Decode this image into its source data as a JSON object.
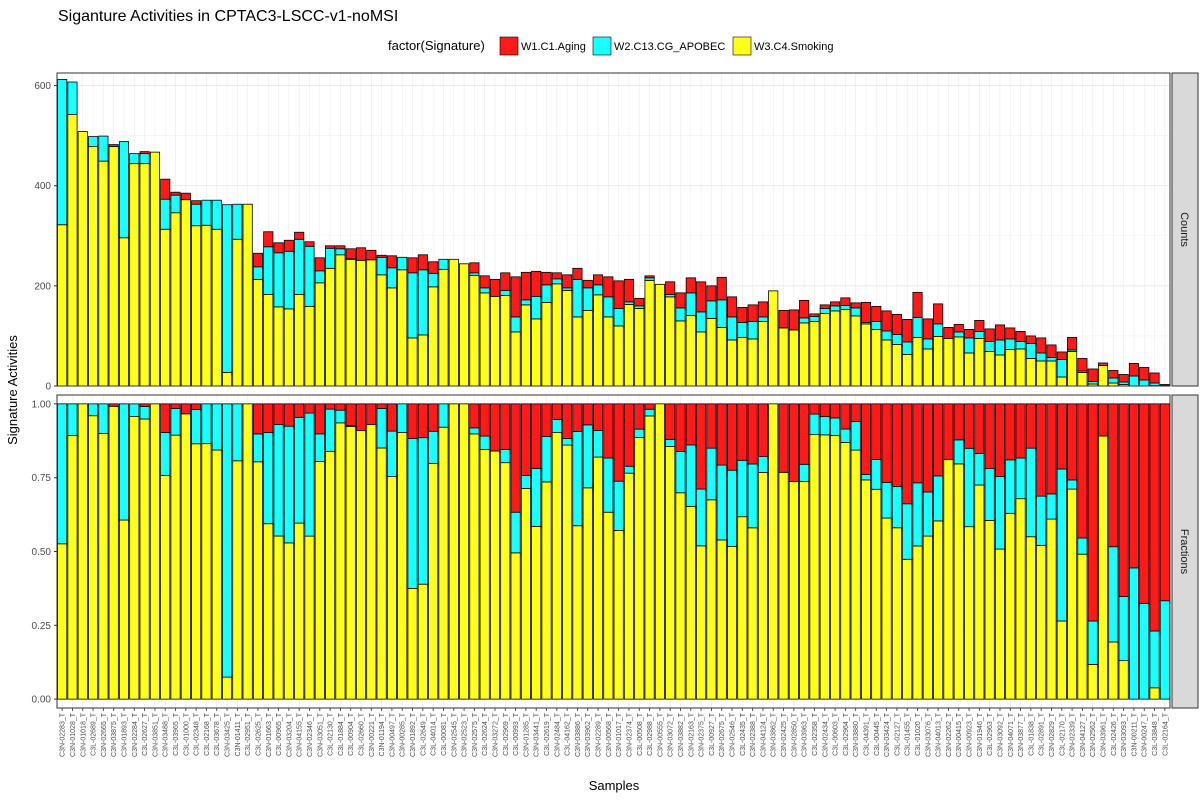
{
  "chart_data": {
    "type": "bar",
    "title": "Siganture Activities in CPTAC3-LSCC-v1-noMSI",
    "xlabel": "Samples",
    "ylabel": "Signature Activities",
    "legend_title": "factor(Signature)",
    "legend_position": "top",
    "signatures": [
      "W1.C1.Aging",
      "W2.C13.CG_APOBEC",
      "W3.C4.Smoking"
    ],
    "colors": {
      "W1.C1.Aging": "#ff1a1a",
      "W2.C13.CG_APOBEC": "#1affff",
      "W3.C4.Smoking": "#ffff1a"
    },
    "panels": [
      {
        "strip": "Counts",
        "ylim": [
          0,
          625
        ],
        "yticks": [
          0,
          200,
          400,
          600
        ]
      },
      {
        "strip": "Fractions",
        "ylim": [
          -0.03,
          1.03
        ],
        "yticks": [
          0.0,
          0.25,
          0.5,
          0.75,
          1.0
        ]
      }
    ],
    "categories": [
      "C3N-02283_T",
      "C3N-01028_T",
      "C3N-01018_T",
      "C3L-02689_T",
      "C3N-02665_T",
      "C3N-03875_T",
      "C3N-01893_T",
      "C3N-02284_T",
      "C3L-02627_T",
      "C3N-03851_T",
      "C3N-03488_T",
      "C3L-03965_T",
      "C3L-01000_T",
      "C3L-02348_T",
      "C3L-02168_T",
      "C3L-03678_T",
      "C3N-03425_T",
      "C3N-01411_T",
      "C3L-02951_T",
      "C3L-02625_T",
      "C3N-01663_T",
      "C3L-00965_T",
      "C3N-03204_T",
      "C3N-04155_T",
      "C3N-02346_T",
      "C3N-03051_T",
      "C3L-02130_T",
      "C3L-01884_T",
      "C3L-00904_T",
      "C3L-02660_T",
      "C3N-00221_T",
      "C3N-01194_T",
      "C3N-00497_T",
      "C3N-00285_T",
      "C3N-01892_T",
      "C3L-02649_T",
      "C3L-04014_T",
      "C3L-00081_T",
      "C3N-02545_T",
      "C3N-02523_T",
      "C3N-02575_T",
      "C3L-02624_T",
      "C3N-03272_T",
      "C3L-02969_T",
      "C3L-00993_T",
      "C3N-01285_T",
      "C3N-03441_T",
      "C3L-02619_T",
      "C3N-02484_T",
      "C3L-04162_T",
      "C3N-03886_T",
      "C3N-03962_T",
      "C3N-02289_T",
      "C3N-00568_T",
      "C3N-01017_T",
      "C3N-02374_T",
      "C3L-00508_T",
      "C3L-02988_T",
      "C3N-00555_T",
      "C3N-03072_T",
      "C3N-03882_T",
      "C3N-02163_T",
      "C3N-02375_T",
      "C3L-00927_T",
      "C3N-02675_T",
      "C3N-02546_T",
      "C3L-02435_T",
      "C3N-02388_T",
      "C3N-04124_T",
      "C3N-03862_T",
      "C3N-02425_T",
      "C3N-02850_T",
      "C3N-03963_T",
      "C3L-02358_T",
      "C3N-02434_T",
      "C3L-00603_T",
      "C3L-02964_T",
      "C3N-03880_T",
      "C3L-04391_T",
      "C3L-00445_T",
      "C3N-03424_T",
      "C3L-02127_T",
      "C3L-01455_T",
      "C3L-01020_T",
      "C3N-03076_T",
      "C3N-04013_T",
      "C3N-02262_T",
      "C3N-00415_T",
      "C3N-00923_T",
      "C3N-01946_T",
      "C3L-02963_T",
      "C3N-03092_T",
      "C3N-04071_T",
      "C3N-03877_T",
      "C3L-01838_T",
      "C3L-02891_T",
      "C3N-02829_T",
      "C3L-02170_T",
      "C3N-02339_T",
      "C3N-04127_T",
      "C3N-02562_T",
      "C3N-03961_T",
      "C3L-02426_T",
      "C3N-03093_T",
      "C3N-00211_T",
      "C3N-00247_T",
      "C3L-03848_T",
      "C3L-02164_T"
    ],
    "series": [
      {
        "name": "W1.C1.Aging",
        "values": [
          0,
          0,
          0,
          0,
          0,
          4,
          0,
          0,
          4,
          0,
          40,
          6,
          13,
          7,
          0,
          0,
          0,
          0,
          0,
          27,
          30,
          20,
          22,
          14,
          9,
          26,
          5,
          6,
          20,
          25,
          19,
          4,
          24,
          0,
          30,
          30,
          23,
          0,
          0,
          0,
          20,
          24,
          34,
          35,
          80,
          55,
          50,
          25,
          12,
          26,
          22,
          15,
          20,
          40,
          55,
          45,
          15,
          4,
          0,
          25,
          30,
          30,
          60,
          30,
          45,
          40,
          30,
          33,
          30,
          0,
          35,
          40,
          35,
          5,
          7,
          8,
          15,
          10,
          40,
          30,
          40,
          40,
          45,
          50,
          40,
          40,
          22,
          15,
          17,
          22,
          25,
          30,
          22,
          20,
          15,
          30,
          25,
          15,
          25,
          25,
          25,
          5,
          15,
          15,
          25,
          25,
          20,
          2
        ]
      },
      {
        "name": "W2.C13.CG_APOBEC",
        "values": [
          290,
          65,
          0,
          20,
          50,
          0,
          192,
          20,
          20,
          0,
          60,
          35,
          0,
          43,
          50,
          58,
          335,
          70,
          0,
          25,
          95,
          108,
          115,
          110,
          120,
          24,
          40,
          12,
          1,
          0,
          0,
          35,
          40,
          25,
          130,
          130,
          27,
          20,
          0,
          0,
          5,
          10,
          0,
          10,
          30,
          10,
          45,
          35,
          10,
          5,
          75,
          45,
          20,
          40,
          35,
          5,
          5,
          5,
          0,
          5,
          26,
          45,
          40,
          35,
          55,
          46,
          30,
          35,
          9,
          0,
          0,
          0,
          10,
          10,
          10,
          10,
          8,
          16,
          3,
          16,
          18,
          20,
          25,
          40,
          20,
          25,
          0,
          10,
          30,
          14,
          20,
          30,
          21,
          15,
          30,
          16,
          7,
          35,
          3,
          3,
          5,
          0,
          10,
          5,
          20,
          12,
          5,
          1
        ]
      },
      {
        "name": "W3.C4.Smoking",
        "values": [
          322,
          542,
          508,
          478,
          449,
          478,
          296,
          444,
          444,
          467,
          313,
          346,
          372,
          320,
          321,
          313,
          27,
          293,
          363,
          213,
          183,
          158,
          154,
          183,
          159,
          206,
          235,
          262,
          253,
          251,
          252,
          222,
          196,
          232,
          96,
          102,
          198,
          233,
          253,
          244,
          221,
          186,
          179,
          181,
          108,
          162,
          134,
          167,
          204,
          191,
          138,
          151,
          182,
          138,
          120,
          163,
          155,
          211,
          203,
          178,
          130,
          141,
          108,
          135,
          117,
          92,
          97,
          94,
          129,
          190,
          116,
          112,
          126,
          129,
          145,
          150,
          153,
          140,
          124,
          113,
          92,
          83,
          63,
          97,
          74,
          99,
          95,
          98,
          66,
          95,
          69,
          62,
          73,
          74,
          55,
          50,
          50,
          18,
          69,
          27,
          4,
          41,
          6,
          3,
          0,
          0,
          1,
          0
        ]
      }
    ]
  }
}
